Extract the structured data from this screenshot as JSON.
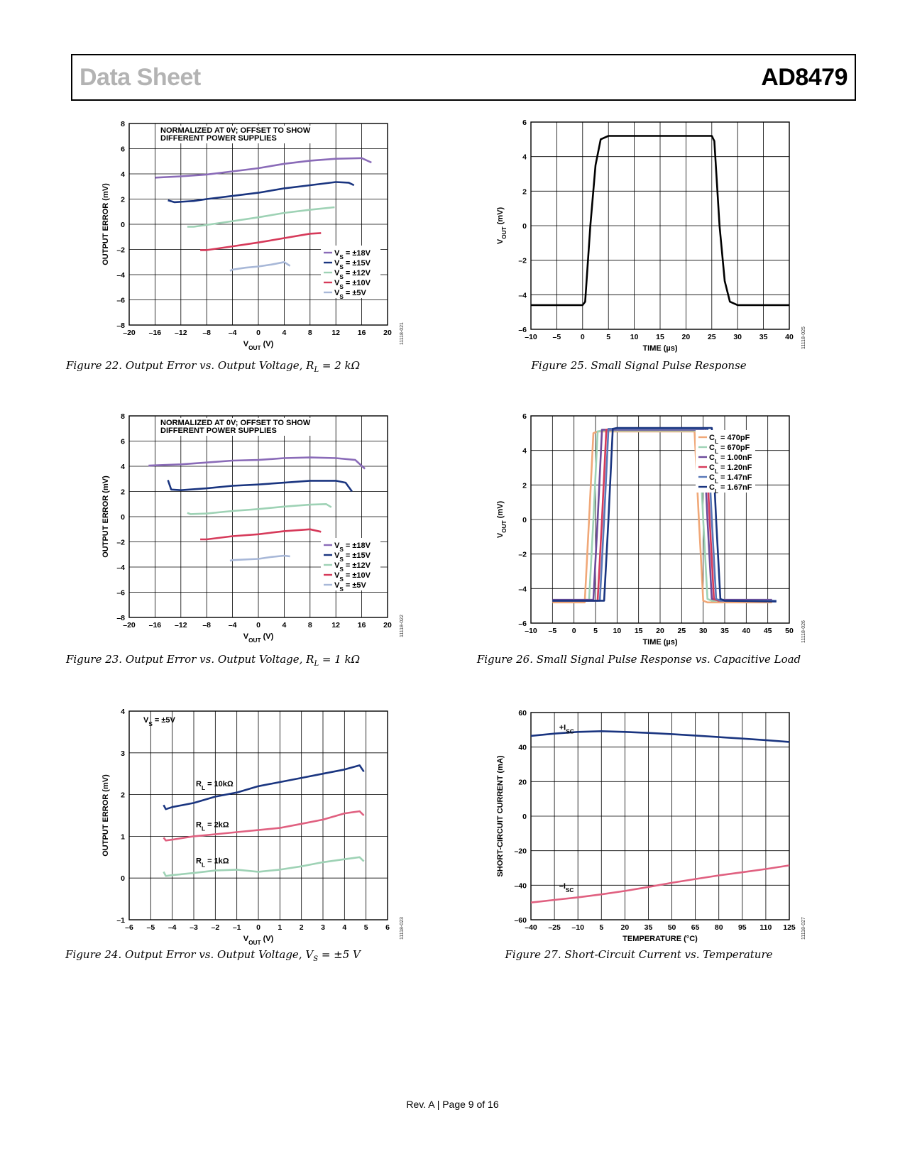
{
  "header": {
    "left": "Data Sheet",
    "right": "AD8479"
  },
  "footer": "Rev. A | Page 9 of 16",
  "figures": [
    {
      "id": "fig22",
      "caption": "Figure 22. Output Error vs. Output Voltage, R",
      "caption_sub": "L",
      "caption_tail": " = 2 kΩ",
      "code": "11118-021",
      "chart_data": {
        "type": "line",
        "title": "NORMALIZED AT 0V; OFFSET TO SHOW DIFFERENT POWER SUPPLIES",
        "xlabel": "V",
        "xlabel_sub": "OUT",
        "xlabel_tail": " (V)",
        "ylabel": "OUTPUT ERROR (mV)",
        "xlim": [
          -20,
          20
        ],
        "ylim": [
          -8,
          8
        ],
        "xticks": [
          "–20",
          "–16",
          "–12",
          "–8",
          "–4",
          "0",
          "4",
          "8",
          "12",
          "16",
          "20"
        ],
        "yticks": [
          "–8",
          "–6",
          "–4",
          "–2",
          "0",
          "2",
          "4",
          "6",
          "8"
        ],
        "grid": true,
        "legend": "bottom-right",
        "series": [
          {
            "name": "V",
            "name_sub": "S",
            "name_tail": " = ±18V",
            "color": "#8a6bb8",
            "x": [
              -16,
              -12,
              -8,
              -4,
              0,
              4,
              8,
              12,
              16,
              17.5
            ],
            "y": [
              3.7,
              3.8,
              3.95,
              4.2,
              4.45,
              4.8,
              5.05,
              5.2,
              5.25,
              4.9
            ]
          },
          {
            "name": "V",
            "name_sub": "S",
            "name_tail": " = ±15V",
            "color": "#1a3580",
            "x": [
              -14,
              -13,
              -10,
              -8,
              -4,
              0,
              4,
              8,
              12,
              14,
              14.8
            ],
            "y": [
              1.9,
              1.75,
              1.85,
              2.0,
              2.25,
              2.5,
              2.85,
              3.1,
              3.35,
              3.3,
              3.1
            ]
          },
          {
            "name": "V",
            "name_sub": "S",
            "name_tail": " = ±12V",
            "color": "#9ed2b5",
            "x": [
              -11,
              -10,
              -8,
              -4,
              0,
              4,
              8,
              11.8
            ],
            "y": [
              -0.2,
              -0.2,
              -0.05,
              0.25,
              0.55,
              0.9,
              1.15,
              1.35
            ]
          },
          {
            "name": "V",
            "name_sub": "S",
            "name_tail": " = ±10V",
            "color": "#d63a5a",
            "x": [
              -9,
              -8,
              -4,
              0,
              4,
              8,
              9.7
            ],
            "y": [
              -2.05,
              -2.05,
              -1.75,
              -1.45,
              -1.1,
              -0.75,
              -0.7
            ]
          },
          {
            "name": "V",
            "name_sub": "S",
            "name_tail": " = ±5V",
            "color": "#a8b8d8",
            "x": [
              -4.4,
              -4,
              -2,
              0,
              2,
              4,
              4.9
            ],
            "y": [
              -3.7,
              -3.6,
              -3.45,
              -3.35,
              -3.2,
              -3.0,
              -3.3
            ]
          }
        ]
      }
    },
    {
      "id": "fig23",
      "caption": "Figure 23. Output Error vs. Output Voltage, R",
      "caption_sub": "L",
      "caption_tail": " = 1 kΩ",
      "code": "11118-022",
      "chart_data": {
        "type": "line",
        "title": "NORMALIZED AT 0V; OFFSET TO SHOW DIFFERENT POWER SUPPLIES",
        "xlabel": "V",
        "xlabel_sub": "OUT",
        "xlabel_tail": " (V)",
        "ylabel": "OUTPUT ERROR (mV)",
        "xlim": [
          -20,
          20
        ],
        "ylim": [
          -8,
          8
        ],
        "xticks": [
          "–20",
          "–16",
          "–12",
          "–8",
          "–4",
          "0",
          "4",
          "8",
          "12",
          "16",
          "20"
        ],
        "yticks": [
          "–8",
          "–6",
          "–4",
          "–2",
          "0",
          "2",
          "4",
          "6",
          "8"
        ],
        "grid": true,
        "legend": "bottom-right",
        "series": [
          {
            "name": "V",
            "name_sub": "S",
            "name_tail": " = ±18V",
            "color": "#8a6bb8",
            "x": [
              -17,
              -12,
              -8,
              -4,
              0,
              4,
              8,
              12,
              15,
              16.5
            ],
            "y": [
              4.05,
              4.15,
              4.3,
              4.45,
              4.5,
              4.65,
              4.7,
              4.65,
              4.5,
              3.8
            ]
          },
          {
            "name": "V",
            "name_sub": "S",
            "name_tail": " = ±15V",
            "color": "#1a3580",
            "x": [
              -14,
              -13.5,
              -12,
              -8,
              -4,
              0,
              4,
              8,
              12,
              13.5,
              14.5
            ],
            "y": [
              2.9,
              2.15,
              2.1,
              2.25,
              2.45,
              2.55,
              2.7,
              2.85,
              2.85,
              2.7,
              2.0
            ]
          },
          {
            "name": "V",
            "name_sub": "S",
            "name_tail": " = ±12V",
            "color": "#9ed2b5",
            "x": [
              -11,
              -10.5,
              -8,
              -4,
              0,
              4,
              8,
              10.5,
              11.3
            ],
            "y": [
              0.3,
              0.2,
              0.25,
              0.45,
              0.6,
              0.8,
              0.95,
              1.0,
              0.75
            ]
          },
          {
            "name": "V",
            "name_sub": "S",
            "name_tail": " = ±10V",
            "color": "#d63a5a",
            "x": [
              -9,
              -8,
              -4,
              0,
              4,
              8,
              9.7
            ],
            "y": [
              -1.8,
              -1.8,
              -1.55,
              -1.4,
              -1.15,
              -1.0,
              -1.2
            ]
          },
          {
            "name": "V",
            "name_sub": "S",
            "name_tail": " = ±5V",
            "color": "#a8b8d8",
            "x": [
              -4.4,
              -4,
              -2,
              0,
              2,
              4,
              4.9
            ],
            "y": [
              -3.5,
              -3.45,
              -3.4,
              -3.35,
              -3.2,
              -3.1,
              -3.15
            ]
          }
        ]
      }
    },
    {
      "id": "fig24",
      "caption": "Figure 24. Output Error vs. Output Voltage, V",
      "caption_sub": "S",
      "caption_tail": " = ±5 V",
      "code": "11118-023",
      "chart_data": {
        "type": "line",
        "title": "V",
        "title_sub": "S",
        "title_tail": " = ±5V",
        "xlabel": "V",
        "xlabel_sub": "OUT",
        "xlabel_tail": " (V)",
        "ylabel": "OUTPUT ERROR (mV)",
        "xlim": [
          -6,
          6
        ],
        "ylim": [
          -1,
          4
        ],
        "xticks": [
          "–6",
          "–5",
          "–4",
          "–3",
          "–2",
          "–1",
          "0",
          "1",
          "2",
          "3",
          "4",
          "5",
          "6"
        ],
        "yticks": [
          "–1",
          "0",
          "1",
          "2",
          "3",
          "4"
        ],
        "grid": true,
        "series": [
          {
            "name": "R",
            "name_sub": "L",
            "name_tail": " = 10kΩ",
            "color": "#1a3580",
            "label_at": [
              -2.9,
              2.2
            ],
            "x": [
              -4.4,
              -4.3,
              -4,
              -3,
              -2,
              -1,
              0,
              1,
              2,
              3,
              4,
              4.7,
              4.9
            ],
            "y": [
              1.75,
              1.65,
              1.7,
              1.8,
              1.95,
              2.05,
              2.2,
              2.3,
              2.4,
              2.5,
              2.6,
              2.7,
              2.55
            ]
          },
          {
            "name": "R",
            "name_sub": "L",
            "name_tail": " = 2kΩ",
            "color": "#e06080",
            "label_at": [
              -2.9,
              1.22
            ],
            "x": [
              -4.4,
              -4.3,
              -4,
              -3,
              -2,
              -1,
              0,
              1,
              2,
              3,
              4,
              4.7,
              4.9
            ],
            "y": [
              0.97,
              0.9,
              0.92,
              1.0,
              1.05,
              1.1,
              1.15,
              1.2,
              1.3,
              1.4,
              1.55,
              1.6,
              1.5
            ]
          },
          {
            "name": "R",
            "name_sub": "L",
            "name_tail": " = 1kΩ",
            "color": "#9ed2b5",
            "label_at": [
              -2.9,
              0.35
            ],
            "x": [
              -4.4,
              -4.3,
              -4,
              -3,
              -2,
              -1,
              0,
              1,
              2,
              3,
              4,
              4.7,
              4.9
            ],
            "y": [
              0.15,
              0.05,
              0.07,
              0.12,
              0.18,
              0.2,
              0.15,
              0.2,
              0.28,
              0.38,
              0.45,
              0.5,
              0.4
            ]
          }
        ]
      }
    },
    {
      "id": "fig25",
      "caption": "Figure 25. Small Signal Pulse Response",
      "code": "11118-025",
      "chart_data": {
        "type": "line",
        "xlabel": "TIME (µs)",
        "ylabel": "V",
        "ylabel_sub": "OUT",
        "ylabel_tail": " (mV)",
        "xlim": [
          -10,
          40
        ],
        "ylim": [
          -6,
          6
        ],
        "xticks": [
          "–10",
          "–5",
          "0",
          "5",
          "10",
          "15",
          "20",
          "25",
          "30",
          "35",
          "40"
        ],
        "yticks": [
          "–6",
          "–4",
          "–2",
          "0",
          "2",
          "4",
          "6"
        ],
        "grid": true,
        "series": [
          {
            "color": "#000000",
            "x": [
              -10,
              0,
              0.5,
              1.5,
              2.5,
              3.5,
              5,
              25,
              25.5,
              26.5,
              27.5,
              28.5,
              30,
              40
            ],
            "y": [
              -4.6,
              -4.6,
              -4.4,
              0,
              3.5,
              5.0,
              5.2,
              5.2,
              4.9,
              0,
              -3.2,
              -4.4,
              -4.6,
              -4.6
            ]
          }
        ]
      }
    },
    {
      "id": "fig26",
      "caption": "Figure 26. Small Signal Pulse Response vs. Capacitive Load",
      "code": "11118-026",
      "chart_data": {
        "type": "line",
        "xlabel": "TIME (µs)",
        "ylabel": "V",
        "ylabel_sub": "OUT",
        "ylabel_tail": " (mV)",
        "xlim": [
          -10,
          50
        ],
        "ylim": [
          -6,
          6
        ],
        "xticks": [
          "–10",
          "–5",
          "0",
          "5",
          "10",
          "15",
          "20",
          "25",
          "30",
          "35",
          "40",
          "45",
          "50"
        ],
        "yticks": [
          "–6",
          "–4",
          "–2",
          "0",
          "2",
          "4",
          "6"
        ],
        "grid": true,
        "legend": "top-right",
        "series": [
          {
            "name": "C",
            "name_sub": "L",
            "name_tail": " = 470pF",
            "color": "#f0a878",
            "x": [
              -5,
              2.5,
              3.5,
              4.5,
              5.5,
              28,
              29,
              30,
              31,
              46
            ],
            "y": [
              -4.8,
              -4.8,
              0,
              5.0,
              5.1,
              5.1,
              0,
              -4.7,
              -4.8,
              -4.8
            ]
          },
          {
            "name": "C",
            "name_sub": "L",
            "name_tail": " = 670pF",
            "color": "#9ed2b5",
            "x": [
              -5,
              3.5,
              4.5,
              5.5,
              6.5,
              29,
              30,
              31,
              32,
              46
            ],
            "y": [
              -4.7,
              -4.7,
              0,
              5.1,
              5.15,
              5.15,
              0,
              -4.6,
              -4.7,
              -4.7
            ]
          },
          {
            "name": "C",
            "name_sub": "L",
            "name_tail": " = 1.00nF",
            "color": "#6b4a9a",
            "x": [
              -5,
              4.5,
              5.5,
              6.5,
              7.5,
              30,
              31,
              32,
              33,
              46
            ],
            "y": [
              -4.65,
              -4.65,
              0,
              5.2,
              5.2,
              5.2,
              0,
              -4.6,
              -4.65,
              -4.65
            ]
          },
          {
            "name": "C",
            "name_sub": "L",
            "name_tail": " = 1.20nF",
            "color": "#d63a5a",
            "x": [
              -5,
              5.5,
              6.5,
              7.5,
              8.5,
              30.5,
              31.5,
              32.5,
              33.5,
              46
            ],
            "y": [
              -4.7,
              -4.7,
              0,
              5.2,
              5.25,
              5.25,
              0,
              -4.6,
              -4.7,
              -4.7
            ]
          },
          {
            "name": "C",
            "name_sub": "L",
            "name_tail": " = 1.47nF",
            "color": "#5878b8",
            "x": [
              -5,
              6,
              7,
              8,
              9,
              31,
              32,
              33,
              34,
              47
            ],
            "y": [
              -4.7,
              -4.7,
              0,
              5.25,
              5.25,
              5.25,
              0,
              -4.6,
              -4.7,
              -4.7
            ]
          },
          {
            "name": "C",
            "name_sub": "L",
            "name_tail": " = 1.67nF",
            "color": "#1a3580",
            "x": [
              -5,
              7,
              8,
              9,
              10,
              32,
              33,
              34,
              35,
              47
            ],
            "y": [
              -4.7,
              -4.7,
              0,
              5.25,
              5.3,
              5.3,
              0,
              -4.6,
              -4.7,
              -4.75
            ]
          }
        ]
      }
    },
    {
      "id": "fig27",
      "caption": "Figure 27. Short-Circuit Current vs. Temperature",
      "code": "11118-027",
      "chart_data": {
        "type": "line",
        "xlabel": "TEMPERATURE (°C)",
        "ylabel": "SHORT-CIRCUIT CURRENT (mA)",
        "xlim": [
          -40,
          125
        ],
        "ylim": [
          -60,
          60
        ],
        "xticks": [
          "–40",
          "–25",
          "–10",
          "5",
          "20",
          "35",
          "50",
          "65",
          "80",
          "95",
          "110",
          "125"
        ],
        "yticks": [
          "–60",
          "–40",
          "–20",
          "0",
          "20",
          "40",
          "60"
        ],
        "grid": true,
        "series": [
          {
            "name": "+I",
            "name_sub": "SC",
            "color": "#1a3580",
            "label_at": [
              -22,
              50
            ],
            "x": [
              -40,
              -25,
              -10,
              5,
              20,
              35,
              50,
              65,
              80,
              95,
              110,
              125
            ],
            "y": [
              46.5,
              47.8,
              48.8,
              49.2,
              48.8,
              48.2,
              47.5,
              46.7,
              45.8,
              44.9,
              44.0,
              43.0
            ]
          },
          {
            "name": "–I",
            "name_sub": "SC",
            "color": "#e06080",
            "label_at": [
              -22,
              -42
            ],
            "x": [
              -40,
              -25,
              -10,
              5,
              20,
              35,
              50,
              65,
              80,
              95,
              110,
              125
            ],
            "y": [
              -50,
              -48.5,
              -47,
              -45.3,
              -43.3,
              -41,
              -38.6,
              -36.4,
              -34.3,
              -32.5,
              -30.6,
              -28.5
            ]
          }
        ]
      }
    }
  ]
}
